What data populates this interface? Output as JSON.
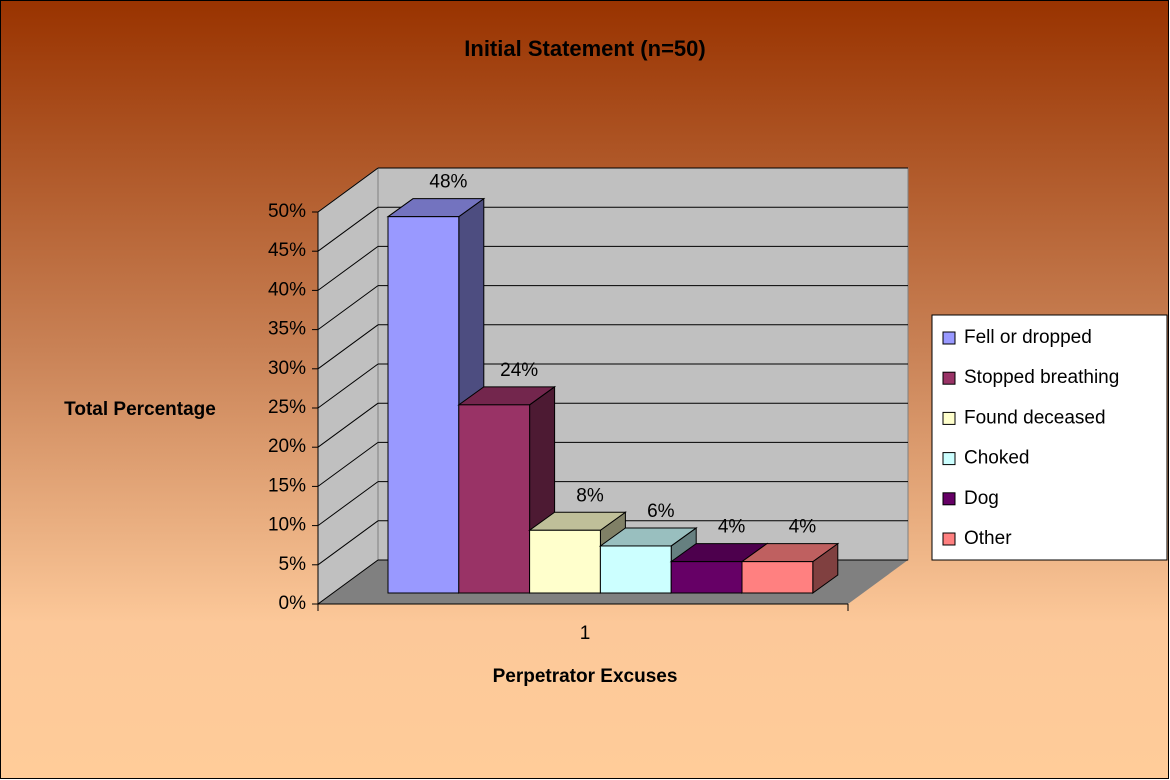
{
  "chart_data": {
    "type": "bar3d",
    "title": "Initial Statement (n=50)",
    "ylabel": "Total Percentage",
    "xlabel": "Perpetrator Excuses",
    "categories": [
      "1"
    ],
    "series": [
      {
        "name": "Fell or dropped",
        "color": "#9999ff",
        "values": [
          48
        ],
        "value_labels": [
          "48%"
        ]
      },
      {
        "name": "Stopped breathing",
        "color": "#993366",
        "values": [
          24
        ],
        "value_labels": [
          "24%"
        ]
      },
      {
        "name": "Found deceased",
        "color": "#ffffcc",
        "values": [
          8
        ],
        "value_labels": [
          "8%"
        ]
      },
      {
        "name": "Choked",
        "color": "#ccffff",
        "values": [
          6
        ],
        "value_labels": [
          "6%"
        ]
      },
      {
        "name": "Dog",
        "color": "#660066",
        "values": [
          4
        ],
        "value_labels": [
          "4%"
        ]
      },
      {
        "name": "Other",
        "color": "#ff8080",
        "values": [
          4
        ],
        "value_labels": [
          "4%"
        ]
      }
    ],
    "ylim": [
      0,
      50
    ],
    "yticks": [
      {
        "value": 0,
        "label": "0%"
      },
      {
        "value": 5,
        "label": "5%"
      },
      {
        "value": 10,
        "label": "10%"
      },
      {
        "value": 15,
        "label": "15%"
      },
      {
        "value": 20,
        "label": "20%"
      },
      {
        "value": 25,
        "label": "25%"
      },
      {
        "value": 30,
        "label": "30%"
      },
      {
        "value": 35,
        "label": "35%"
      },
      {
        "value": 40,
        "label": "40%"
      },
      {
        "value": 45,
        "label": "45%"
      },
      {
        "value": 50,
        "label": "50%"
      }
    ],
    "grid": true,
    "legend": "right"
  }
}
